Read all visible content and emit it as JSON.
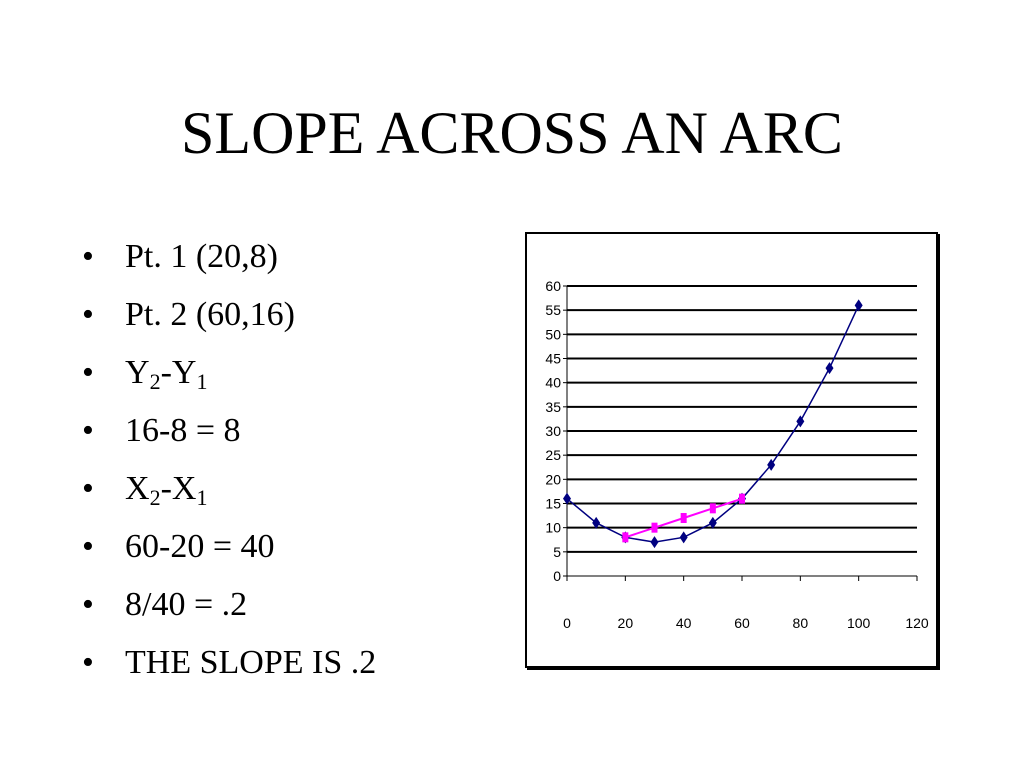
{
  "title": "SLOPE ACROSS AN ARC",
  "bullets": [
    {
      "text": "Pt. 1 (20,8)"
    },
    {
      "text": "Pt. 2 (60,16)"
    },
    {
      "parts": [
        "Y",
        "2",
        "-Y",
        "1"
      ]
    },
    {
      "text": "16-8 = 8"
    },
    {
      "parts": [
        "X",
        "2",
        "-X",
        "1"
      ]
    },
    {
      "text": "60-20 = 40"
    },
    {
      "text": "8/40 = .2"
    },
    {
      "text": "THE SLOPE IS .2"
    }
  ],
  "bullet_symbol": "•",
  "chart_data": {
    "type": "line",
    "title": "",
    "xlabel": "",
    "ylabel": "",
    "xlim": [
      0,
      120
    ],
    "ylim": [
      0,
      60
    ],
    "x_ticks": [
      0,
      20,
      40,
      60,
      80,
      100,
      120
    ],
    "y_ticks": [
      0,
      5,
      10,
      15,
      20,
      25,
      30,
      35,
      40,
      45,
      50,
      55,
      60
    ],
    "grid": "horizontal",
    "series": [
      {
        "color": "#000080",
        "marker": "diamond",
        "x": [
          0,
          10,
          20,
          30,
          40,
          50,
          60,
          70,
          80,
          90,
          100
        ],
        "y": [
          16,
          11,
          8,
          7,
          8,
          11,
          16,
          23,
          32,
          43,
          56
        ]
      },
      {
        "color": "#ff00ff",
        "marker": "square",
        "x": [
          20,
          30,
          40,
          50,
          60
        ],
        "y": [
          8,
          10,
          12,
          14,
          16
        ]
      }
    ]
  }
}
